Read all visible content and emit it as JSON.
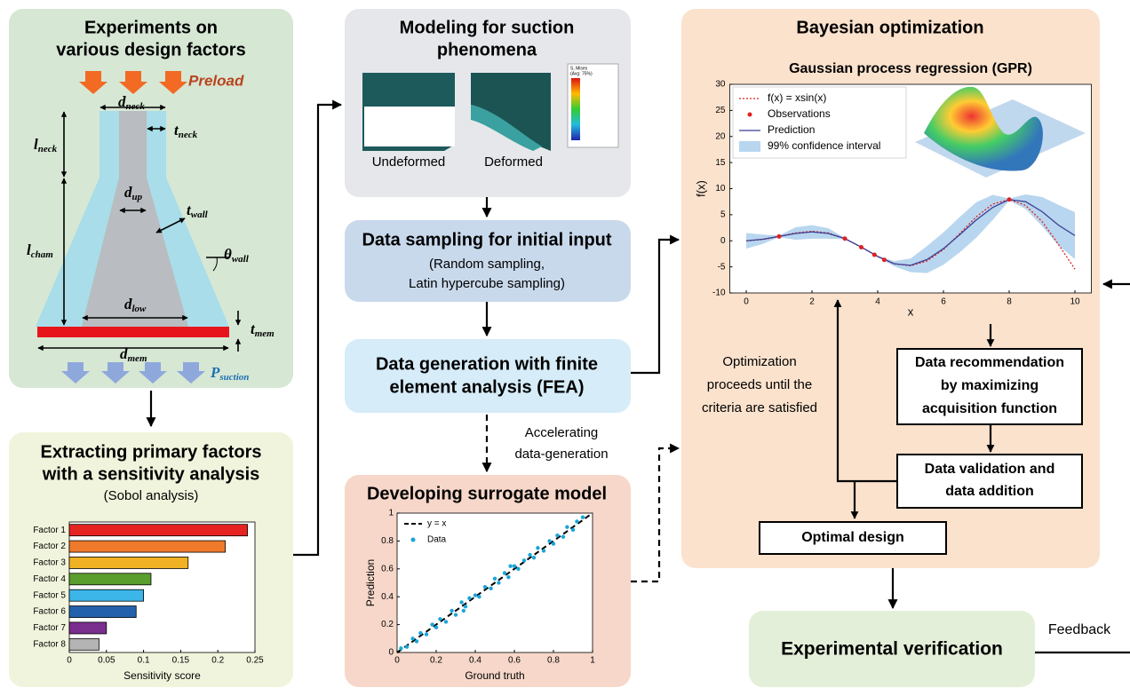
{
  "experiments": {
    "title": [
      "Experiments on",
      "various design factors"
    ],
    "preload": "Preload",
    "suction": {
      "main": "P",
      "sub": "suction"
    },
    "dims": [
      {
        "main": "d",
        "sub": "neck"
      },
      {
        "main": "t",
        "sub": "neck"
      },
      {
        "main": "l",
        "sub": "neck"
      },
      {
        "main": "d",
        "sub": "up"
      },
      {
        "main": "t",
        "sub": "wall"
      },
      {
        "main": "l",
        "sub": "cham"
      },
      {
        "main": "θ",
        "sub": "wall"
      },
      {
        "main": "d",
        "sub": "low"
      },
      {
        "main": "t",
        "sub": "mem"
      },
      {
        "main": "d",
        "sub": "mem"
      }
    ]
  },
  "sensitivity": {
    "title": [
      "Extracting primary factors",
      "with a sensitivity analysis"
    ],
    "subtitle": "(Sobol analysis)",
    "chart_data": {
      "type": "bar",
      "orientation": "horizontal",
      "categories": [
        "Factor 1",
        "Factor 2",
        "Factor 3",
        "Factor 4",
        "Factor 5",
        "Factor 6",
        "Factor 7",
        "Factor 8"
      ],
      "values": [
        0.24,
        0.21,
        0.16,
        0.11,
        0.1,
        0.09,
        0.05,
        0.04
      ],
      "colors": [
        "#e52421",
        "#ef7a2b",
        "#f0b224",
        "#5a9e2e",
        "#3cb6e8",
        "#2461ad",
        "#7a2e8e",
        "#b3b3b3"
      ],
      "xlabel": "Sensitivity score",
      "xlim": [
        0,
        0.25
      ],
      "xticks": [
        0,
        0.05,
        0.1,
        0.15,
        0.2,
        0.25
      ]
    }
  },
  "modeling": {
    "title": [
      "Modeling for suction",
      "phenomena"
    ],
    "legend_title": [
      "S, Mises",
      "(Avg: 75%)"
    ],
    "images": [
      "Undeformed",
      "Deformed"
    ]
  },
  "sampling": {
    "title": "Data sampling for initial input",
    "detail": [
      "(Random sampling,",
      "Latin hypercube sampling)"
    ]
  },
  "fea": {
    "title": [
      "Data generation with finite",
      "element analysis (FEA)"
    ]
  },
  "accelerating": [
    "Accelerating",
    "data-generation"
  ],
  "surrogate": {
    "title": "Developing surrogate model",
    "chart_data": {
      "type": "scatter",
      "xlabel": "Ground truth",
      "ylabel": "Prediction",
      "xlim": [
        0,
        1
      ],
      "ylim": [
        0,
        1
      ],
      "xticks": [
        0,
        0.2,
        0.4,
        0.6,
        0.8,
        1
      ],
      "yticks": [
        0,
        0.2,
        0.4,
        0.6,
        0.8,
        1
      ],
      "series": [
        {
          "name": "y = x",
          "color": "#000000",
          "style": "dashed-line",
          "x": [
            0,
            1
          ],
          "values": [
            0,
            1
          ]
        },
        {
          "name": "Data",
          "color": "#1aa6d8",
          "style": "dot",
          "x": [
            0.02,
            0.05,
            0.08,
            0.1,
            0.12,
            0.15,
            0.18,
            0.2,
            0.22,
            0.25,
            0.28,
            0.3,
            0.33,
            0.35,
            0.37,
            0.4,
            0.42,
            0.45,
            0.48,
            0.5,
            0.52,
            0.55,
            0.57,
            0.6,
            0.62,
            0.65,
            0.68,
            0.7,
            0.72,
            0.75,
            0.78,
            0.8,
            0.82,
            0.85,
            0.87,
            0.9,
            0.92,
            0.95,
            0.34,
            0.58
          ],
          "values": [
            0.03,
            0.04,
            0.1,
            0.08,
            0.14,
            0.13,
            0.2,
            0.18,
            0.24,
            0.22,
            0.3,
            0.27,
            0.36,
            0.33,
            0.39,
            0.41,
            0.4,
            0.47,
            0.46,
            0.53,
            0.5,
            0.57,
            0.54,
            0.62,
            0.6,
            0.66,
            0.7,
            0.68,
            0.75,
            0.73,
            0.8,
            0.78,
            0.84,
            0.83,
            0.9,
            0.88,
            0.94,
            0.97,
            0.3,
            0.62
          ]
        }
      ]
    }
  },
  "bayesian": {
    "title": "Bayesian optimization",
    "gpr": {
      "chart_data": {
        "type": "line",
        "title": "Gaussian process regression (GPR)",
        "xlabel": "x",
        "ylabel": "f(x)",
        "xlim": [
          -0.5,
          10.5
        ],
        "ylim": [
          -10,
          30
        ],
        "xticks": [
          0,
          2,
          4,
          6,
          8,
          10
        ],
        "yticks": [
          -10,
          -5,
          0,
          5,
          10,
          15,
          20,
          25,
          30
        ],
        "x": [
          0,
          0.5,
          1,
          1.5,
          2,
          2.5,
          3,
          3.5,
          4,
          4.5,
          5,
          5.5,
          6,
          6.5,
          7,
          7.5,
          8,
          8.5,
          9,
          9.5,
          10
        ],
        "series": [
          {
            "name": "f(x) = xsin(x)",
            "color": "#e02020",
            "style": "dotted",
            "values": [
              0,
              0.24,
              0.84,
              1.5,
              1.82,
              1.5,
              0.42,
              -1.23,
              -3.03,
              -4.4,
              -4.79,
              -3.88,
              -1.68,
              1.4,
              4.6,
              7.04,
              7.91,
              6.79,
              3.71,
              -0.71,
              -5.44
            ]
          },
          {
            "name": "Observations",
            "color": "#e02020",
            "style": "dot",
            "x": [
              1,
              3,
              3.5,
              3.9,
              4.2,
              8
            ],
            "values": [
              0.84,
              0.42,
              -1.23,
              -2.68,
              -3.66,
              7.91
            ]
          },
          {
            "name": "Prediction",
            "color": "#3b3f95",
            "style": "line",
            "values": [
              0,
              0.3,
              0.84,
              1.4,
              1.7,
              1.4,
              0.42,
              -1.2,
              -3.0,
              -4.4,
              -4.7,
              -3.6,
              -1.5,
              1.2,
              4.0,
              6.4,
              7.9,
              7.5,
              5.6,
              3.0,
              1.0
            ]
          },
          {
            "name": "99% confidence interval",
            "color": "#b8d6ef",
            "style": "band",
            "lower": [
              -1.5,
              -0.6,
              0.7,
              0.2,
              0.4,
              0.4,
              0.3,
              -1.3,
              -3.1,
              -4.9,
              -6.0,
              -6.2,
              -4.6,
              -2.2,
              0.6,
              4.0,
              7.7,
              6.1,
              2.8,
              -0.9,
              -3.5
            ],
            "upper": [
              1.5,
              1.2,
              1.0,
              2.6,
              3.0,
              2.4,
              0.55,
              -1.1,
              -2.9,
              -3.9,
              -3.4,
              -1.0,
              1.6,
              4.6,
              7.4,
              8.8,
              8.1,
              8.9,
              8.4,
              6.9,
              5.5
            ]
          }
        ]
      }
    },
    "criteria": [
      "Optimization",
      "proceeds until the",
      "criteria are satisfied"
    ],
    "recommendation": [
      "Data recommendation",
      "by maximizing",
      "acquisition function"
    ],
    "validation": [
      "Data validation and",
      "data addition"
    ],
    "optimal": "Optimal design"
  },
  "verification": "Experimental verification",
  "feedback": "Feedback"
}
